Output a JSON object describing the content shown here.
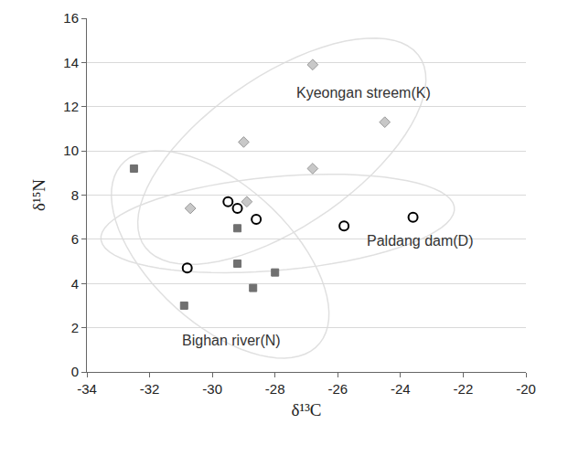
{
  "chart_data": {
    "type": "scatter",
    "xlabel": "δ¹³C",
    "ylabel": "δ¹⁵N",
    "xlim": [
      -34,
      -20
    ],
    "xticks": [
      -34,
      -32,
      -30,
      -28,
      -26,
      -24,
      -22,
      -20
    ],
    "ylim": [
      0,
      16
    ],
    "yticks": [
      0,
      2,
      4,
      6,
      8,
      10,
      12,
      14,
      16
    ],
    "grid": "y",
    "series": [
      {
        "name": "Kyeongan streem(K)",
        "color": "#c8c8c8",
        "marker": "diamond",
        "x": [
          -30.7,
          -29.0,
          -28.9,
          -26.8,
          -26.8,
          -24.5
        ],
        "values": [
          7.4,
          10.4,
          7.7,
          13.9,
          9.2,
          11.3
        ]
      },
      {
        "name": "Paldang dam(D)",
        "color": "#000000",
        "marker": "circle-open",
        "x": [
          -30.8,
          -29.5,
          -29.2,
          -28.6,
          -25.8,
          -23.6
        ],
        "values": [
          4.7,
          7.7,
          7.4,
          6.9,
          6.6,
          7.0
        ]
      },
      {
        "name": "Bighan river(N)",
        "color": "#707070",
        "marker": "square",
        "x": [
          -32.5,
          -30.9,
          -29.2,
          -29.2,
          -28.7,
          -28.0
        ],
        "values": [
          9.2,
          3.0,
          6.5,
          4.9,
          3.8,
          4.5
        ]
      }
    ]
  }
}
